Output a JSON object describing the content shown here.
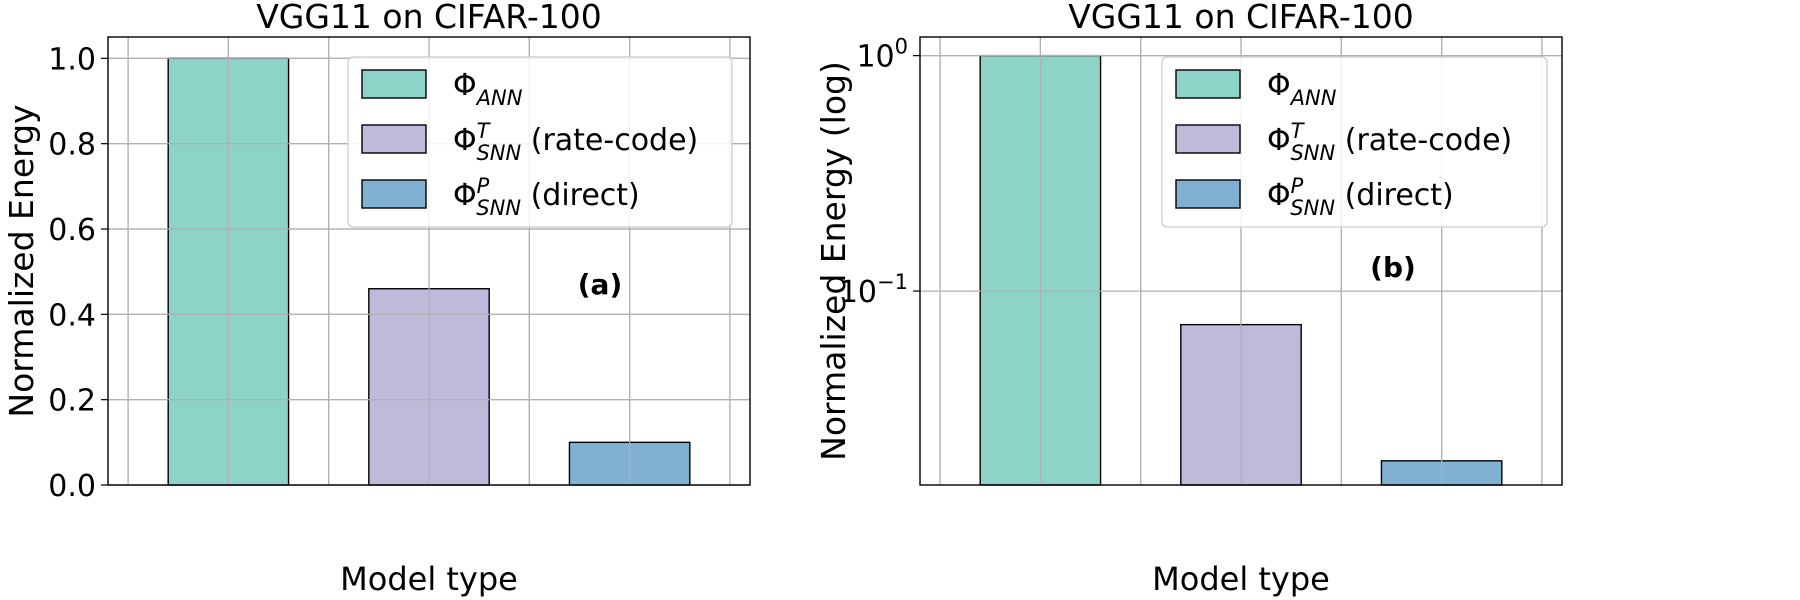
{
  "colors": {
    "ann": "#8dd3c7",
    "snn_rate": "#bebada",
    "snn_direct": "#80b1d3",
    "grid": "#b0b0b0",
    "legend_edge": "#cccccc"
  },
  "chart_data": [
    {
      "type": "bar",
      "panel_label": "(a)",
      "title": "VGG11 on CIFAR-100",
      "xlabel": "Model type",
      "ylabel": "Normalized Energy",
      "yscale": "linear",
      "ylim": [
        0,
        1.05
      ],
      "yticks": [
        {
          "value": 0.0,
          "label": "0.0"
        },
        {
          "value": 0.2,
          "label": "0.2"
        },
        {
          "value": 0.4,
          "label": "0.4"
        },
        {
          "value": 0.6,
          "label": "0.6"
        },
        {
          "value": 0.8,
          "label": "0.8"
        },
        {
          "value": 1.0,
          "label": "1.0"
        }
      ],
      "grid": true,
      "legend_position": "top-right",
      "series": [
        {
          "name": "Φ_ANN",
          "value": 1.0,
          "color_key": "ann"
        },
        {
          "name": "Φ^T_SNN (rate-code)",
          "value": 0.46,
          "color_key": "snn_rate"
        },
        {
          "name": "Φ^P_SNN (direct)",
          "value": 0.1,
          "color_key": "snn_direct"
        }
      ]
    },
    {
      "type": "bar",
      "panel_label": "(b)",
      "title": "VGG11 on CIFAR-100",
      "xlabel": "Model type",
      "ylabel": "Normalized Energy (log)",
      "yscale": "log",
      "ylim": [
        0.015,
        1.2
      ],
      "yticks": [
        {
          "value": 1.0,
          "base": "10",
          "exp": "0"
        },
        {
          "value": 0.1,
          "base": "10",
          "exp": "−1"
        }
      ],
      "grid": true,
      "legend_position": "top-right",
      "series": [
        {
          "name": "Φ_ANN",
          "value": 1.0,
          "color_key": "ann"
        },
        {
          "name": "Φ^T_SNN (rate-code)",
          "value": 0.072,
          "color_key": "snn_rate"
        },
        {
          "name": "Φ^P_SNN (direct)",
          "value": 0.019,
          "color_key": "snn_direct"
        }
      ]
    }
  ],
  "legend": [
    {
      "symbol": "Φ",
      "sup": "",
      "sub": "ANN",
      "suffix": "",
      "color_key": "ann"
    },
    {
      "symbol": "Φ",
      "sup": "T",
      "sub": "SNN",
      "suffix": " (rate-code)",
      "color_key": "snn_rate"
    },
    {
      "symbol": "Φ",
      "sup": "P",
      "sub": "SNN",
      "suffix": " (direct)",
      "color_key": "snn_direct"
    }
  ]
}
